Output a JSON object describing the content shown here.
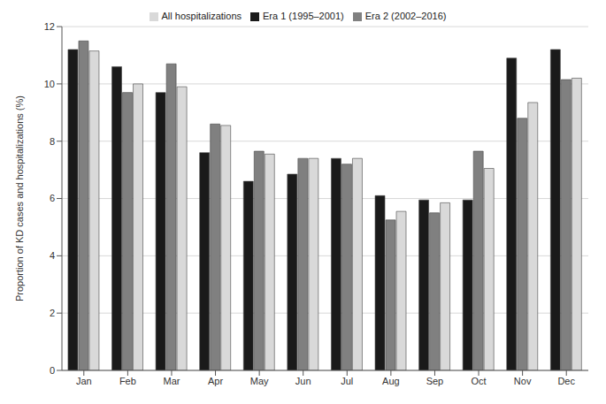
{
  "chart_data": {
    "type": "bar",
    "y_label": "Proportion of KD cases and hospitalizations (%)",
    "categories": [
      "Jan",
      "Feb",
      "Mar",
      "Apr",
      "May",
      "Jun",
      "Jul",
      "Aug",
      "Sep",
      "Oct",
      "Nov",
      "Dec"
    ],
    "series": [
      {
        "name": "Era 1 (1995–2001)",
        "color": "#1a1a1a",
        "values": [
          11.2,
          10.6,
          9.7,
          7.6,
          6.6,
          6.85,
          7.4,
          6.1,
          5.95,
          5.95,
          10.9,
          11.2
        ]
      },
      {
        "name": "Era 2 (2002–2016)",
        "color": "#808080",
        "values": [
          11.5,
          9.7,
          10.7,
          8.6,
          7.65,
          7.4,
          7.2,
          5.25,
          5.5,
          7.65,
          8.8,
          10.15
        ]
      },
      {
        "name": "All hospitalizations",
        "color": "#d9d9d9",
        "values": [
          11.15,
          10.0,
          9.9,
          8.55,
          7.55,
          7.4,
          7.4,
          5.55,
          5.85,
          7.05,
          9.35,
          10.2
        ]
      }
    ],
    "ylim": [
      0,
      12
    ],
    "yticks": [
      0,
      2,
      4,
      6,
      8,
      10,
      12
    ],
    "grid": true,
    "legend": "top"
  }
}
